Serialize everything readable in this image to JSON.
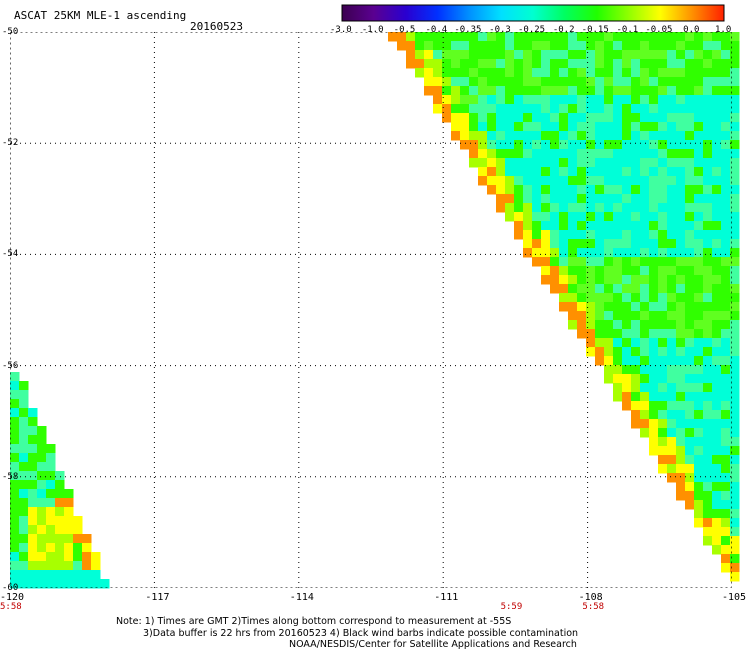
{
  "header": {
    "title": "ASCAT 25KM MLE-1 ascending",
    "date": "20160523"
  },
  "colorbar": {
    "labels": [
      "-3.0",
      "-1.0",
      "-0.5",
      "-0.4",
      "-0.35",
      "-0.3",
      "-0.25",
      "-0.2",
      "-0.15",
      "-0.1",
      "-0.05",
      "0.0",
      "1.0"
    ],
    "colors": [
      "#3c0050",
      "#5a0090",
      "#2a00d0",
      "#0030ff",
      "#0090ff",
      "#00e0ff",
      "#00ffd0",
      "#00ff60",
      "#20ff00",
      "#90ff00",
      "#ffff00",
      "#ff9000",
      "#ff2000"
    ]
  },
  "map": {
    "lat_labels": [
      "-50",
      "-52",
      "-54",
      "-56",
      "-58",
      "-60"
    ],
    "lon_labels": [
      "-120",
      "-117",
      "-114",
      "-111",
      "-108",
      "-105"
    ],
    "lon_range": [
      -120,
      -105
    ],
    "lat_range": [
      -60,
      -50
    ],
    "times": [
      {
        "label": "5:58",
        "lon": -120
      },
      {
        "label": "5:59",
        "lon": -109.6
      },
      {
        "label": "5:58",
        "lon": -107.9
      }
    ],
    "swath_colors": {
      "teal": "#00ffd8",
      "green": "#30ff00",
      "light_green": "#60ff20",
      "lime": "#a8ff00",
      "yellow": "#ffff00",
      "orange": "#ff9000"
    }
  },
  "notes": {
    "line1": "Note: 1) Times are GMT 2)Times along bottom correspond to measurement at -55S",
    "line2": "3)Data buffer is 22 hrs from 20160523 4) Black wind barbs indicate possible contamination",
    "line3": "NOAA/NESDIS/Center for Satellite Applications and Research"
  }
}
